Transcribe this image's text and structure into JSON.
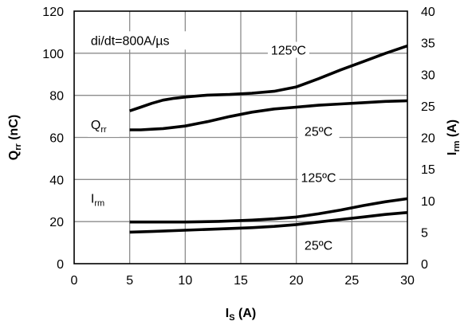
{
  "chart_data": {
    "type": "line",
    "xlabel": {
      "main": "I",
      "sub": "S",
      "rest": " (A)"
    },
    "ylabel_left": {
      "main": "Q",
      "sub": "rr",
      "rest": " (nC)"
    },
    "ylabel_right": {
      "main": "I",
      "sub": "rm",
      "rest": " (A)"
    },
    "xlim": [
      0,
      30
    ],
    "ylim_left": [
      0,
      120
    ],
    "ylim_right": [
      0,
      40
    ],
    "x_ticks": [
      0,
      5,
      10,
      15,
      20,
      25,
      30
    ],
    "y_left_ticks": [
      0,
      20,
      40,
      60,
      80,
      100,
      120
    ],
    "y_right_ticks": [
      0,
      5,
      10,
      15,
      20,
      25,
      30,
      35,
      40
    ],
    "grid": true,
    "group_labels": [
      {
        "main": "Q",
        "sub": "rr",
        "x": 1.5,
        "y": 64
      },
      {
        "main": "I",
        "sub": "rm",
        "x": 1.5,
        "y": 29
      }
    ],
    "annotations": [
      {
        "text": "di/dt=800A/µs",
        "x": 1.5,
        "y": 104
      }
    ],
    "series": [
      {
        "label": "125ºC",
        "axis": "right",
        "label_at": [
          19.3,
          33.5
        ],
        "x": [
          5,
          6,
          7,
          8,
          9,
          10,
          12,
          14,
          16,
          18,
          20,
          22,
          24,
          26,
          28,
          30
        ],
        "y": [
          24.2,
          24.8,
          25.4,
          25.9,
          26.2,
          26.4,
          26.7,
          26.8,
          27.0,
          27.3,
          28.0,
          29.3,
          30.7,
          32.0,
          33.3,
          34.5
        ]
      },
      {
        "label": "25ºC",
        "axis": "right",
        "label_at": [
          22,
          20.6
        ],
        "x": [
          5,
          6,
          7,
          8,
          9,
          10,
          12,
          14,
          16,
          18,
          20,
          22,
          24,
          26,
          28,
          30
        ],
        "y": [
          21.2,
          21.2,
          21.3,
          21.4,
          21.6,
          21.8,
          22.5,
          23.3,
          24.0,
          24.5,
          24.8,
          25.1,
          25.3,
          25.5,
          25.7,
          25.8
        ]
      },
      {
        "label": "125ºC",
        "axis": "right",
        "label_at": [
          22,
          13.3
        ],
        "x": [
          5,
          7,
          10,
          13,
          16,
          18,
          20,
          22,
          24,
          26,
          28,
          30
        ],
        "y": [
          6.6,
          6.6,
          6.6,
          6.7,
          6.9,
          7.1,
          7.4,
          7.9,
          8.5,
          9.2,
          9.8,
          10.3
        ]
      },
      {
        "label": "25ºC",
        "axis": "right",
        "label_at": [
          22,
          2.6
        ],
        "x": [
          5,
          7,
          10,
          13,
          16,
          18,
          20,
          22,
          24,
          26,
          28,
          30
        ],
        "y": [
          5.0,
          5.1,
          5.3,
          5.5,
          5.7,
          5.9,
          6.2,
          6.6,
          7.0,
          7.4,
          7.8,
          8.1
        ]
      }
    ]
  }
}
